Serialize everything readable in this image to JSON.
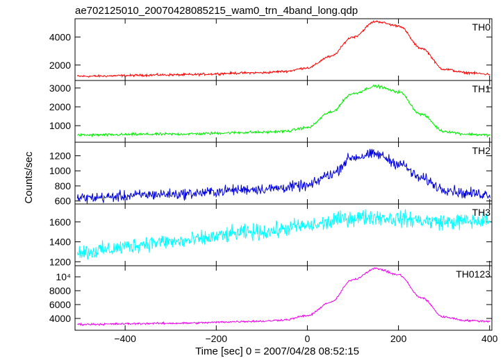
{
  "chart_data": {
    "type": "line",
    "title": "ae702125010_20070428085215_wam0_trn_4band_long.qdp",
    "xlabel": "Time [sec] 0 = 2007/04/28 08:52:15",
    "ylabel": "Counts/sec",
    "xlim": [
      -510,
      405
    ],
    "x_ticks": [
      {
        "value": -400,
        "label": "−400"
      },
      {
        "value": -200,
        "label": "−200"
      },
      {
        "value": 0,
        "label": "0"
      },
      {
        "value": 200,
        "label": "200"
      },
      {
        "value": 400,
        "label": "400"
      }
    ],
    "series": [
      {
        "name": "TH0",
        "color": "#ff0000",
        "ylim": [
          900,
          5300
        ],
        "y_ticks": [
          {
            "value": 2000,
            "label": "2000"
          },
          {
            "value": 4000,
            "label": "4000"
          }
        ],
        "x": [
          -500,
          -300,
          -100,
          -50,
          0,
          50,
          100,
          150,
          200,
          250,
          300,
          350,
          400
        ],
        "y": [
          1200,
          1300,
          1450,
          1550,
          1800,
          2600,
          4000,
          5100,
          4800,
          3200,
          1700,
          1450,
          1350
        ],
        "noise": 40
      },
      {
        "name": "TH1",
        "color": "#00ee00",
        "ylim": [
          120,
          3400
        ],
        "y_ticks": [
          {
            "value": 1000,
            "label": "1000"
          },
          {
            "value": 2000,
            "label": "2000"
          },
          {
            "value": 3000,
            "label": "3000"
          }
        ],
        "x": [
          -500,
          -300,
          -100,
          -50,
          0,
          50,
          100,
          150,
          200,
          250,
          300,
          350,
          400
        ],
        "y": [
          500,
          550,
          650,
          700,
          900,
          1700,
          2700,
          3100,
          2800,
          1600,
          700,
          550,
          500
        ],
        "noise": 35
      },
      {
        "name": "TH2",
        "color": "#0000dd",
        "ylim": [
          560,
          1380
        ],
        "y_ticks": [
          {
            "value": 600,
            "label": "600"
          },
          {
            "value": 800,
            "label": "800"
          },
          {
            "value": 1000,
            "label": "1000"
          },
          {
            "value": 1200,
            "label": "1200"
          }
        ],
        "x": [
          -500,
          -300,
          -100,
          0,
          50,
          100,
          150,
          200,
          250,
          300,
          350,
          400
        ],
        "y": [
          640,
          690,
          760,
          800,
          950,
          1180,
          1220,
          1100,
          900,
          760,
          700,
          690
        ],
        "noise": 35
      },
      {
        "name": "TH3",
        "color": "#00ffff",
        "ylim": [
          1160,
          1780
        ],
        "y_ticks": [
          {
            "value": 1200,
            "label": "1200"
          },
          {
            "value": 1400,
            "label": "1400"
          },
          {
            "value": 1600,
            "label": "1600"
          }
        ],
        "x": [
          -500,
          -300,
          -100,
          0,
          100,
          150,
          200,
          300,
          400
        ],
        "y": [
          1300,
          1400,
          1500,
          1560,
          1640,
          1650,
          1630,
          1600,
          1610
        ],
        "noise": 40
      },
      {
        "name": "TH0123",
        "color": "#ee00ee",
        "ylim": [
          2300,
          11600
        ],
        "y_ticks": [
          {
            "value": 4000,
            "label": "4000"
          },
          {
            "value": 6000,
            "label": "6000"
          },
          {
            "value": 8000,
            "label": "8000"
          },
          {
            "value": 10000,
            "label": "10⁴"
          }
        ],
        "x": [
          -500,
          -300,
          -100,
          -50,
          0,
          50,
          100,
          150,
          200,
          250,
          300,
          350,
          400
        ],
        "y": [
          3150,
          3300,
          3600,
          3800,
          4400,
          6300,
          9600,
          11200,
          10300,
          7000,
          4200,
          3700,
          3600
        ],
        "noise": 70
      }
    ]
  }
}
